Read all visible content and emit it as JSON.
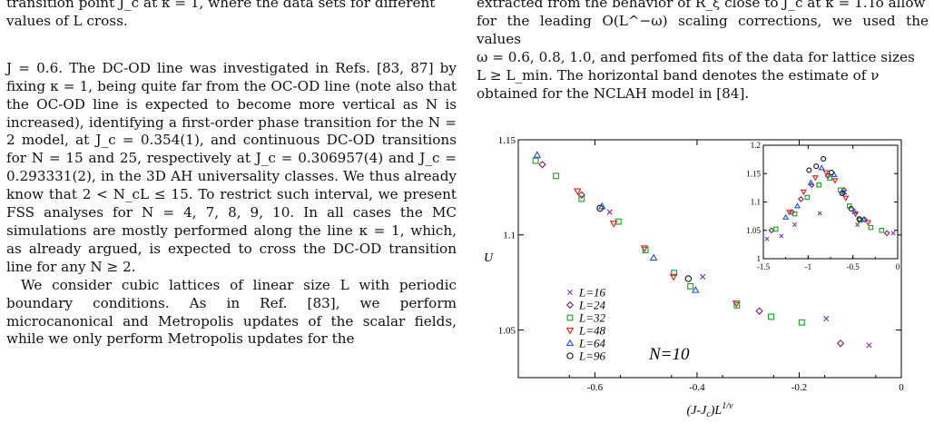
{
  "left_column": {
    "fragment_lines": [
      "transition point J_c at κ = 1, where the data sets for different",
      "values of L cross."
    ],
    "para1": "J = 0.6. The DC-OD line was investigated in Refs. [83, 87] by fixing κ = 1, being quite far from the OC-OD line (note also that the OC-OD line is expected to become more vertical as N is increased), identifying a first-order phase transition for the N = 2 model, at J_c = 0.354(1), and continuous DC-OD transitions for N = 15 and 25, respectively at J_c = 0.306957(4) and J_c = 0.293331(2), in the 3D AH universality classes. We thus already know that 2 < N_cL ≤ 15. To restrict such interval, we present FSS analyses for N = 4, 7, 8, 9, 10. In all cases the MC simulations are mostly performed along the line κ = 1, which, as already argued, is expected to cross the DC-OD transition line for any N ≥ 2.",
    "para2": "We consider cubic lattices of linear size L with periodic boundary conditions. As in Ref. [83], we perform microcanonical and Metropolis updates of the scalar fields, while we only perform Metropolis updates for the"
  },
  "right_column": {
    "caption_lines": [
      "extracted from the behavior of R_ξ close to J_c at κ = 1.To allow",
      "for the leading O(L^−ω) scaling corrections, we used the values",
      "ω = 0.6, 0.8, 1.0, and perfomed fits of the data for lattice sizes",
      "L ≥ L_min. The horizontal band denotes the estimate of ν",
      "obtained for the NCLAH model in [84]."
    ]
  },
  "chart_data": [
    {
      "type": "scatter",
      "title": "",
      "annotation": "N=10",
      "xlabel": "(J-J_c)L^{1/ν}",
      "ylabel": "U",
      "xlim": [
        -0.75,
        0.0
      ],
      "ylim": [
        1.025,
        1.15
      ],
      "xticks": [
        "-0.6",
        "-0.4",
        "-0.2",
        "0"
      ],
      "xtick_values": [
        -0.6,
        -0.4,
        -0.2,
        0.0
      ],
      "yticks": [
        "1.05",
        "1.1",
        "1.15"
      ],
      "ytick_values": [
        1.05,
        1.1,
        1.15
      ],
      "legend_position": "bottom-left",
      "series": [
        {
          "name": "L=16",
          "marker": "x",
          "color": "#7b2fbe",
          "x": [
            -0.571,
            -0.389,
            -0.147,
            -0.063
          ],
          "y": [
            1.112,
            1.078,
            1.056,
            1.042
          ]
        },
        {
          "name": "L=24",
          "marker": "diamond",
          "color": "#7b1c5a",
          "x": [
            -0.703,
            -0.626,
            -0.278,
            -0.119
          ],
          "y": [
            1.137,
            1.121,
            1.06,
            1.043
          ]
        },
        {
          "name": "L=32",
          "marker": "square",
          "color": "#16a016",
          "x": [
            -0.716,
            -0.676,
            -0.626,
            -0.554,
            -0.501,
            -0.445,
            -0.413,
            -0.322,
            -0.255,
            -0.195
          ],
          "y": [
            1.139,
            1.131,
            1.119,
            1.107,
            1.092,
            1.08,
            1.073,
            1.063,
            1.057,
            1.054
          ]
        },
        {
          "name": "L=48",
          "marker": "triangle-down",
          "color": "#e41a1c",
          "x": [
            -0.634,
            -0.563,
            -0.503,
            -0.446,
            -0.323
          ],
          "y": [
            1.123,
            1.106,
            1.093,
            1.078,
            1.064
          ]
        },
        {
          "name": "L=64",
          "marker": "triangle-up",
          "color": "#1f4fd8",
          "x": [
            -0.713,
            -0.586,
            -0.485,
            -0.403
          ],
          "y": [
            1.142,
            1.115,
            1.088,
            1.071
          ]
        },
        {
          "name": "L=96",
          "marker": "circle",
          "color": "#111111",
          "x": [
            -0.59,
            -0.417
          ],
          "y": [
            1.114,
            1.077
          ]
        }
      ]
    },
    {
      "type": "scatter",
      "title": "",
      "inset": true,
      "xlabel": "",
      "ylabel": "",
      "xlim": [
        -1.5,
        0.0
      ],
      "ylim": [
        1.0,
        1.2
      ],
      "xticks": [
        "-1.5",
        "-1",
        "-0.5",
        "0"
      ],
      "xtick_values": [
        -1.5,
        -1.0,
        -0.5,
        0.0
      ],
      "yticks": [
        "1",
        "1.05",
        "1.1",
        "1.15",
        "1.2"
      ],
      "ytick_values": [
        1.0,
        1.05,
        1.1,
        1.15,
        1.2
      ],
      "series": [
        {
          "name": "L=16",
          "marker": "x",
          "color": "#7b2fbe",
          "x": [
            -1.46,
            -1.3,
            -1.15,
            -0.87,
            -0.45,
            -0.05
          ],
          "y": [
            1.035,
            1.04,
            1.06,
            1.08,
            1.06,
            1.045
          ]
        },
        {
          "name": "L=24",
          "marker": "diamond",
          "color": "#7b1c5a",
          "x": [
            -1.41,
            -1.18,
            -1.08,
            -0.96,
            -0.78,
            -0.6,
            -0.37,
            -0.12
          ],
          "y": [
            1.05,
            1.082,
            1.105,
            1.13,
            1.146,
            1.121,
            1.069,
            1.045
          ]
        },
        {
          "name": "L=32",
          "marker": "square",
          "color": "#16a016",
          "x": [
            -1.36,
            -1.15,
            -1.01,
            -0.88,
            -0.76,
            -0.64,
            -0.54,
            -0.42,
            -0.3,
            -0.18
          ],
          "y": [
            1.052,
            1.079,
            1.108,
            1.13,
            1.142,
            1.121,
            1.093,
            1.068,
            1.055,
            1.05
          ]
        },
        {
          "name": "L=48",
          "marker": "triangle-down",
          "color": "#e41a1c",
          "x": [
            -1.21,
            -1.05,
            -0.92,
            -0.8,
            -0.7,
            -0.58,
            -0.47,
            -0.33
          ],
          "y": [
            1.082,
            1.118,
            1.143,
            1.152,
            1.138,
            1.107,
            1.079,
            1.064
          ]
        },
        {
          "name": "L=64",
          "marker": "triangle-up",
          "color": "#1f4fd8",
          "x": [
            -1.25,
            -1.12,
            -0.97,
            -0.85,
            -0.71,
            -0.6,
            -0.48,
            -0.38
          ],
          "y": [
            1.073,
            1.093,
            1.134,
            1.16,
            1.148,
            1.117,
            1.083,
            1.069
          ]
        },
        {
          "name": "L=96",
          "marker": "circle",
          "color": "#111111",
          "x": [
            -0.99,
            -0.91,
            -0.83,
            -0.74,
            -0.62,
            -0.52,
            -0.43
          ],
          "y": [
            1.156,
            1.163,
            1.176,
            1.152,
            1.115,
            1.088,
            1.07
          ]
        }
      ]
    }
  ]
}
